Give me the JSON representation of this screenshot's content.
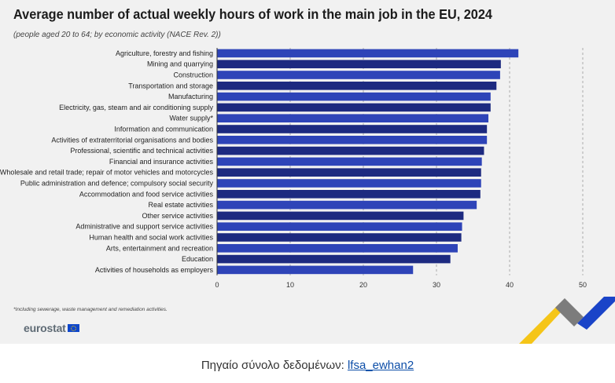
{
  "chart_data": {
    "type": "bar",
    "orientation": "horizontal",
    "title": "Average number of actual weekly hours of work in the main job in the EU, 2024",
    "subtitle": "(people aged 20 to 64; by economic activity (NACE Rev. 2))",
    "categories": [
      "Agriculture, forestry and fishing",
      "Mining and quarrying",
      "Construction",
      "Transportation and storage",
      "Manufacturing",
      "Electricity, gas, steam and air conditioning supply",
      "Water supply*",
      "Information and communication",
      "Activities of extraterritorial organisations and bodies",
      "Professional, scientific and technical activities",
      "Financial and insurance activities",
      "Wholesale and retail trade; repair of motor vehicles and motorcycles",
      "Public administration and defence; compulsory social security",
      "Accommodation and food service activities",
      "Real estate activities",
      "Other service activities",
      "Administrative and support service activities",
      "Human health and social work activities",
      "Arts, entertainment and recreation",
      "Education",
      "Activities of households as employers"
    ],
    "values": [
      41.2,
      38.8,
      38.7,
      38.2,
      37.4,
      37.4,
      37.1,
      36.9,
      36.9,
      36.5,
      36.2,
      36.1,
      36.1,
      36.0,
      35.5,
      33.7,
      33.5,
      33.4,
      32.9,
      31.9,
      26.8
    ],
    "xticks": [
      0,
      10,
      20,
      30,
      40,
      50
    ],
    "xlim": [
      0,
      50
    ],
    "xlabel": "",
    "ylabel": "",
    "grid": "vertical-dashed",
    "colors": {
      "dark": "#1d2a80",
      "light": "#2e44b8"
    }
  },
  "footnote": "*Including sewerage, waste management and remediation activities.",
  "logo": {
    "text": "eurostat",
    "flag_icon": "eu-flag-icon"
  },
  "source": {
    "label": "Πηγαίο σύνολο δεδομένων:",
    "link_text": "lfsa_ewhan2"
  }
}
